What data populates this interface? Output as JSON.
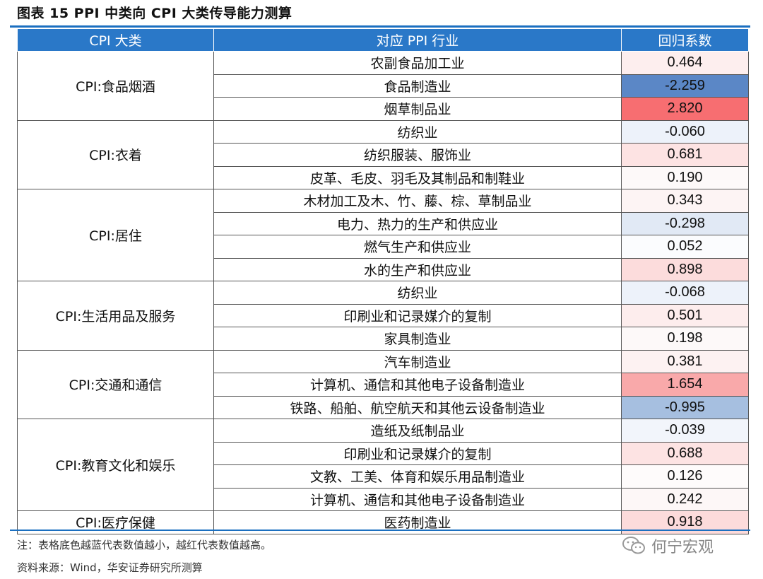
{
  "title": "图表 15  PPI 中类向 CPI 大类传导能力测算",
  "headers": [
    "CPI 大类",
    "对应 PPI 行业",
    "回归系数"
  ],
  "groups": [
    {
      "category": "CPI:食品烟酒",
      "rows": [
        {
          "industry": "农副食品加工业",
          "value": "0.464",
          "color": "#fdeeee"
        },
        {
          "industry": "食品制造业",
          "value": "-2.259",
          "color": "#5b87c6"
        },
        {
          "industry": "烟草制品业",
          "value": "2.820",
          "color": "#f76e71"
        }
      ]
    },
    {
      "category": "CPI:衣着",
      "rows": [
        {
          "industry": "纺织业",
          "value": "-0.060",
          "color": "#edf2fa"
        },
        {
          "industry": "纺织服装、服饰业",
          "value": "0.681",
          "color": "#fde3e3"
        },
        {
          "industry": "皮革、毛皮、羽毛及其制品和制鞋业",
          "value": "0.190",
          "color": "#fdf9f9"
        }
      ]
    },
    {
      "category": "CPI:居住",
      "rows": [
        {
          "industry": "木材加工及木、竹、藤、棕、草制品业",
          "value": "0.343",
          "color": "#fdf4f4"
        },
        {
          "industry": "电力、热力的生产和供应业",
          "value": "-0.298",
          "color": "#e1e9f5"
        },
        {
          "industry": "燃气生产和供应业",
          "value": "0.052",
          "color": "#fbfcfe"
        },
        {
          "industry": "水的生产和供应业",
          "value": "0.898",
          "color": "#fcdcdc"
        }
      ]
    },
    {
      "category": "CPI:生活用品及服务",
      "rows": [
        {
          "industry": "纺织业",
          "value": "-0.068",
          "color": "#edf2fa"
        },
        {
          "industry": "印刷业和记录媒介的复制",
          "value": "0.501",
          "color": "#fdeded"
        },
        {
          "industry": "家具制造业",
          "value": "0.198",
          "color": "#fdf9f9"
        }
      ]
    },
    {
      "category": "CPI:交通和通信",
      "rows": [
        {
          "industry": "汽车制造业",
          "value": "0.381",
          "color": "#fdf2f2"
        },
        {
          "industry": "计算机、通信和其他电子设备制造业",
          "value": "1.654",
          "color": "#f9a9aa"
        },
        {
          "industry": "铁路、船舶、航空航天和其他云设备制造业",
          "value": "-0.995",
          "color": "#a6bfe0"
        }
      ]
    },
    {
      "category": "CPI:教育文化和娱乐",
      "rows": [
        {
          "industry": "造纸及纸制品业",
          "value": "-0.039",
          "color": "#f2f5fb"
        },
        {
          "industry": "印刷业和记录媒介的复制",
          "value": "0.688",
          "color": "#fde3e3"
        },
        {
          "industry": "文教、工美、体育和娱乐用品制造业",
          "value": "0.126",
          "color": "#fefbfb"
        },
        {
          "industry": "计算机、通信和其他电子设备制造业",
          "value": "0.242",
          "color": "#fdf7f7"
        }
      ]
    },
    {
      "category": "CPI:医疗保健",
      "rows": [
        {
          "industry": "医药制造业",
          "value": "0.918",
          "color": "#fcdbdb"
        }
      ]
    }
  ],
  "note": "注：表格底色越蓝代表数值越小，越红代表数值越高。",
  "source": "资料来源：Wind，华安证券研究所测算",
  "watermark": "何宁宏观"
}
